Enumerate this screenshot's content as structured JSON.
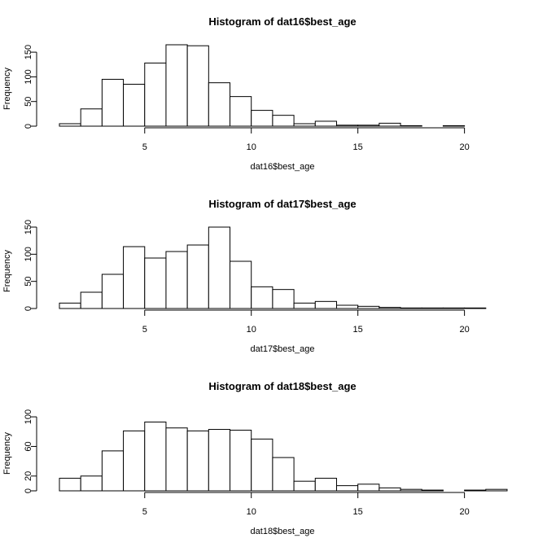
{
  "chart_data": [
    {
      "type": "bar",
      "title": "Histogram of dat16$best_age",
      "xlabel": "dat16$best_age",
      "ylabel": "Frequency",
      "breaks": [
        1,
        2,
        3,
        4,
        5,
        6,
        7,
        8,
        9,
        10,
        11,
        12,
        13,
        14,
        15,
        16,
        17,
        18,
        19,
        20,
        21,
        22
      ],
      "counts": [
        5,
        35,
        95,
        85,
        128,
        165,
        163,
        88,
        60,
        32,
        22,
        5,
        10,
        2,
        2,
        6,
        1,
        0,
        1,
        0,
        0
      ],
      "xlim": [
        1,
        22
      ],
      "ylim": [
        0,
        165
      ],
      "xticks": [
        5,
        10,
        15,
        20
      ],
      "yticks": [
        0,
        50,
        100,
        150
      ]
    },
    {
      "type": "bar",
      "title": "Histogram of dat17$best_age",
      "xlabel": "dat17$best_age",
      "ylabel": "Frequency",
      "breaks": [
        1,
        2,
        3,
        4,
        5,
        6,
        7,
        8,
        9,
        10,
        11,
        12,
        13,
        14,
        15,
        16,
        17,
        18,
        19,
        20,
        21,
        22
      ],
      "counts": [
        10,
        30,
        63,
        114,
        93,
        105,
        117,
        150,
        87,
        40,
        35,
        10,
        13,
        6,
        4,
        2,
        1,
        1,
        1,
        1,
        0
      ],
      "xlim": [
        1,
        22
      ],
      "ylim": [
        0,
        150
      ],
      "xticks": [
        5,
        10,
        15,
        20
      ],
      "yticks": [
        0,
        50,
        100,
        150
      ]
    },
    {
      "type": "bar",
      "title": "Histogram of dat18$best_age",
      "xlabel": "dat18$best_age",
      "ylabel": "Frequency",
      "breaks": [
        1,
        2,
        3,
        4,
        5,
        6,
        7,
        8,
        9,
        10,
        11,
        12,
        13,
        14,
        15,
        16,
        17,
        18,
        19,
        20,
        21,
        22
      ],
      "counts": [
        17,
        20,
        54,
        81,
        93,
        85,
        81,
        83,
        82,
        70,
        45,
        13,
        17,
        7,
        9,
        4,
        2,
        1,
        0,
        1,
        2
      ],
      "xlim": [
        1,
        22
      ],
      "ylim": [
        0,
        110
      ],
      "xticks": [
        5,
        10,
        15,
        20
      ],
      "yticks": [
        0,
        20,
        60,
        100
      ]
    }
  ]
}
